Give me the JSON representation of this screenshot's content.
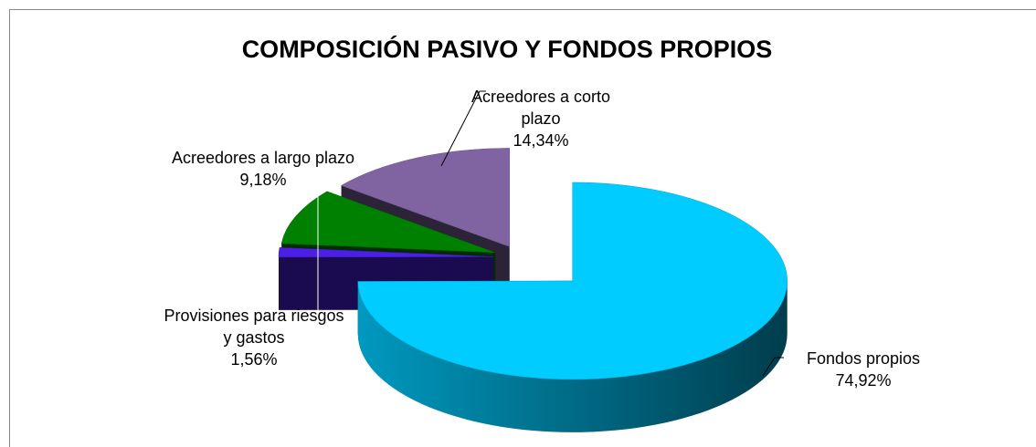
{
  "chart_data": {
    "type": "pie",
    "title": "COMPOSICIÓN PASIVO Y FONDOS PROPIOS",
    "categories": [
      "Fondos propios",
      "Provisiones para riesgos y gastos",
      "Acreedores a largo plazo",
      "Acreedores a corto plazo"
    ],
    "values": [
      74.92,
      1.56,
      9.18,
      14.34
    ],
    "value_labels": [
      "74,92%",
      "1,56%",
      "9,18%",
      "14,34%"
    ],
    "colors": [
      "#00ccff",
      "#4b1fe6",
      "#008000",
      "#8064a2"
    ]
  }
}
